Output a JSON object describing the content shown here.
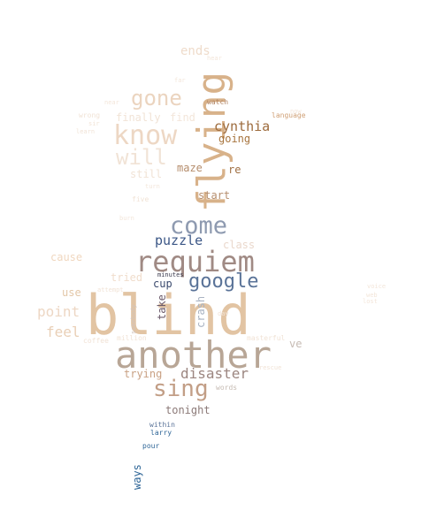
{
  "colors": {
    "background": "#ffffff",
    "palette": [
      "#e2c4a3",
      "#b8a696",
      "#a08a84",
      "#8e9ab0",
      "#5a7398",
      "#3b5686",
      "#d8a77a",
      "#c49a70",
      "#edd7c4",
      "#f1e3d6",
      "#2f6697",
      "#a8753f"
    ]
  },
  "words": [
    {
      "text": "blind",
      "color": "#e2c4a3"
    },
    {
      "text": "another",
      "color": "#b8a696"
    },
    {
      "text": "flying",
      "color": "#d8b28a"
    },
    {
      "text": "requiem",
      "color": "#a08a84"
    },
    {
      "text": "know",
      "color": "#edd7c4"
    },
    {
      "text": "come",
      "color": "#8e9ab0"
    },
    {
      "text": "sing",
      "color": "#c29e86"
    },
    {
      "text": "gone",
      "color": "#ebd4bf"
    },
    {
      "text": "will",
      "color": "#f1e3d6"
    },
    {
      "text": "google",
      "color": "#5a7398"
    },
    {
      "text": "disaster",
      "color": "#9c8680"
    },
    {
      "text": "cynthia",
      "color": "#9d6b3c"
    },
    {
      "text": "puzzle",
      "color": "#3b5686"
    },
    {
      "text": "point",
      "color": "#edd7c4"
    },
    {
      "text": "feel",
      "color": "#e9cfb6"
    },
    {
      "text": "ends",
      "color": "#efdccb"
    },
    {
      "text": "trying",
      "color": "#c9a184"
    },
    {
      "text": "tonight",
      "color": "#8c7a78"
    },
    {
      "text": "finally",
      "color": "#f1e3d6"
    },
    {
      "text": "find",
      "color": "#f3e6da"
    },
    {
      "text": "going",
      "color": "#a8753f"
    },
    {
      "text": "maze",
      "color": "#b58d6c"
    },
    {
      "text": "still",
      "color": "#f1e3d6"
    },
    {
      "text": "start",
      "color": "#b68e6e"
    },
    {
      "text": "re",
      "color": "#a06f42"
    },
    {
      "text": "class",
      "color": "#ead8cc"
    },
    {
      "text": "cause",
      "color": "#f0d7bf"
    },
    {
      "text": "tried",
      "color": "#f0ddcc"
    },
    {
      "text": "cup",
      "color": "#3b4a6e"
    },
    {
      "text": "take",
      "color": "#6b5a6a"
    },
    {
      "text": "crash",
      "color": "#a9b3c2"
    },
    {
      "text": "use",
      "color": "#e3c7a8"
    },
    {
      "text": "ve",
      "color": "#c6bbb3"
    },
    {
      "text": "ways",
      "color": "#2f6697"
    },
    {
      "text": "watch",
      "color": "#b28463"
    },
    {
      "text": "language",
      "color": "#cf9f74"
    },
    {
      "text": "wrong",
      "color": "#f1e3d6"
    },
    {
      "text": "learn",
      "color": "#f1e3d6"
    },
    {
      "text": "sir",
      "color": "#f1e3d6"
    },
    {
      "text": "near",
      "color": "#f3e6da"
    },
    {
      "text": "far",
      "color": "#f3e6da"
    },
    {
      "text": "hear",
      "color": "#f3e6da"
    },
    {
      "text": "now",
      "color": "#f3e6da"
    },
    {
      "text": "turn",
      "color": "#f3e6da"
    },
    {
      "text": "five",
      "color": "#f1e3d6"
    },
    {
      "text": "burn",
      "color": "#f3e6da"
    },
    {
      "text": "minutes",
      "color": "#3b3b4e"
    },
    {
      "text": "attempt",
      "color": "#f1e3d6"
    },
    {
      "text": "somebody",
      "color": "#d2c4bd"
    },
    {
      "text": "million",
      "color": "#f1e3d6"
    },
    {
      "text": "coffee",
      "color": "#f1e3d6"
    },
    {
      "text": "day",
      "color": "#f1e3d6"
    },
    {
      "text": "masterful",
      "color": "#f1e3d6"
    },
    {
      "text": "rescue",
      "color": "#f1e3d6"
    },
    {
      "text": "words",
      "color": "#c6bbb3"
    },
    {
      "text": "voice",
      "color": "#f3e6da"
    },
    {
      "text": "web",
      "color": "#f3e6da"
    },
    {
      "text": "lost",
      "color": "#f3e6da"
    },
    {
      "text": "within",
      "color": "#5a7398"
    },
    {
      "text": "larry",
      "color": "#2f6697"
    },
    {
      "text": "pour",
      "color": "#2f6697"
    }
  ]
}
